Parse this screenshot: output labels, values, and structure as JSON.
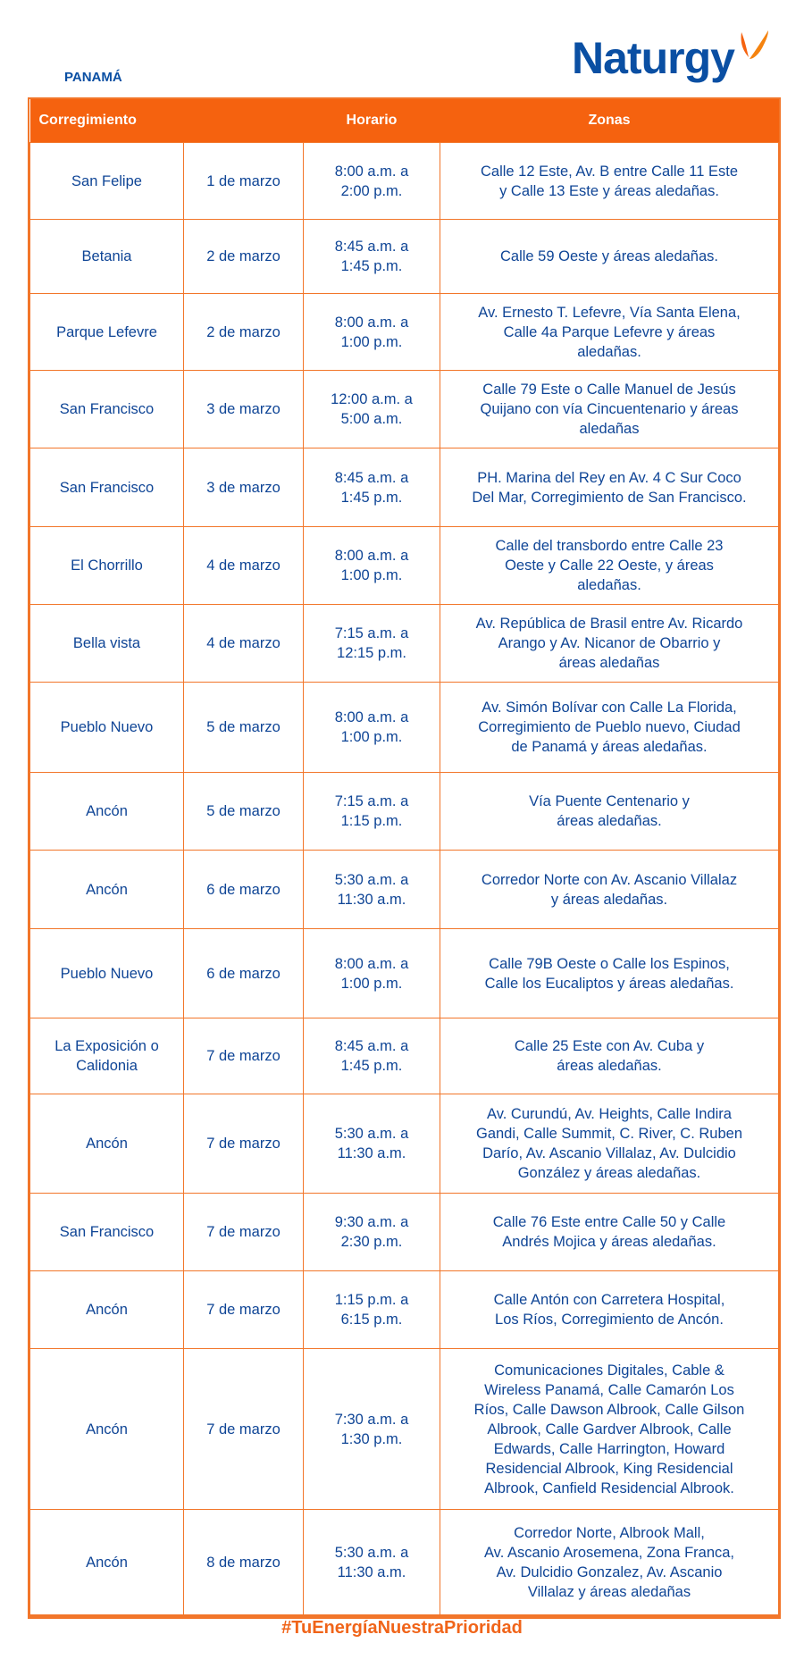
{
  "brand": {
    "logo_text": "Naturgy",
    "accent": "#f5620f",
    "blue": "#0a4fa3"
  },
  "region": "PANAMÁ",
  "table": {
    "headers": [
      "Corregimiento",
      "",
      "Horario",
      "Zonas"
    ],
    "rows": [
      {
        "corregimiento": "San Felipe",
        "fecha": "1 de marzo",
        "horario": "8:00 a.m. a\n2:00 p.m.",
        "zonas": "Calle 12 Este, Av. B entre Calle 11 Este\ny Calle 13 Este y áreas aledañas."
      },
      {
        "corregimiento": "Betania",
        "fecha": "2 de marzo",
        "horario": "8:45 a.m. a\n1:45 p.m.",
        "zonas": "Calle 59 Oeste y áreas aledañas."
      },
      {
        "corregimiento": "Parque Lefevre",
        "fecha": "2 de marzo",
        "horario": "8:00 a.m. a\n1:00 p.m.",
        "zonas": "Av. Ernesto T. Lefevre, Vía Santa Elena,\nCalle 4a Parque Lefevre y áreas\naledañas."
      },
      {
        "corregimiento": "San Francisco",
        "fecha": "3 de marzo",
        "horario": "12:00 a.m. a\n5:00 a.m.",
        "zonas": "Calle 79 Este o Calle Manuel de Jesús\nQuijano con vía Cincuentenario y áreas\naledañas"
      },
      {
        "corregimiento": "San Francisco",
        "fecha": "3 de marzo",
        "horario": "8:45 a.m. a\n1:45 p.m.",
        "zonas": "PH. Marina del Rey en Av. 4 C Sur Coco\nDel Mar, Corregimiento de San Francisco."
      },
      {
        "corregimiento": "El Chorrillo",
        "fecha": "4 de marzo",
        "horario": "8:00 a.m. a\n1:00 p.m.",
        "zonas": "Calle del transbordo entre Calle 23\nOeste y Calle 22 Oeste, y áreas\naledañas."
      },
      {
        "corregimiento": "Bella vista",
        "fecha": "4 de marzo",
        "horario": "7:15 a.m. a\n12:15 p.m.",
        "zonas": "Av. República de Brasil entre Av. Ricardo\nArango y Av. Nicanor de Obarrio y\náreas aledañas"
      },
      {
        "corregimiento": "Pueblo Nuevo",
        "fecha": "5 de marzo",
        "horario": "8:00 a.m. a\n1:00 p.m.",
        "zonas": "Av. Simón Bolívar con Calle La Florida,\nCorregimiento de Pueblo nuevo, Ciudad\nde Panamá y áreas aledañas."
      },
      {
        "corregimiento": "Ancón",
        "fecha": "5 de marzo",
        "horario": "7:15 a.m. a\n1:15 p.m.",
        "zonas": "Vía Puente Centenario y\náreas aledañas."
      },
      {
        "corregimiento": "Ancón",
        "fecha": "6 de marzo",
        "horario": "5:30 a.m. a\n11:30 a.m.",
        "zonas": "Corredor Norte con Av. Ascanio Villalaz\ny áreas aledañas."
      },
      {
        "corregimiento": "Pueblo Nuevo",
        "fecha": "6 de marzo",
        "horario": "8:00 a.m. a\n1:00 p.m.",
        "zonas": "Calle 79B Oeste o Calle los Espinos,\nCalle los Eucaliptos y áreas aledañas."
      },
      {
        "corregimiento": "La Exposición o\nCalidonia",
        "fecha": "7 de marzo",
        "horario": "8:45 a.m. a\n1:45 p.m.",
        "zonas": "Calle 25 Este con Av. Cuba y\náreas aledañas."
      },
      {
        "corregimiento": "Ancón",
        "fecha": "7 de marzo",
        "horario": "5:30 a.m. a\n11:30 a.m.",
        "zonas": "Av. Curundú, Av. Heights, Calle Indira\nGandi, Calle Summit, C. River, C. Ruben\nDarío, Av. Ascanio Villalaz, Av. Dulcidio\nGonzález y áreas aledañas."
      },
      {
        "corregimiento": "San Francisco",
        "fecha": "7 de marzo",
        "horario": "9:30 a.m. a\n2:30 p.m.",
        "zonas": "Calle 76 Este entre Calle 50 y Calle\nAndrés Mojica y áreas aledañas."
      },
      {
        "corregimiento": "Ancón",
        "fecha": "7 de marzo",
        "horario": "1:15 p.m. a\n6:15 p.m.",
        "zonas": "Calle Antón con Carretera Hospital,\nLos Ríos, Corregimiento de Ancón."
      },
      {
        "corregimiento": "Ancón",
        "fecha": "7 de marzo",
        "horario": "7:30 a.m. a\n1:30 p.m.",
        "zonas": "Comunicaciones Digitales, Cable &\nWireless Panamá, Calle Camarón Los\nRíos, Calle Dawson Albrook, Calle Gilson\nAlbrook, Calle Gardver Albrook, Calle\nEdwards, Calle Harrington, Howard\nResidencial Albrook, King Residencial\nAlbrook, Canfield Residencial Albrook."
      },
      {
        "corregimiento": "Ancón",
        "fecha": "8 de marzo",
        "horario": "5:30 a.m. a\n11:30 a.m.",
        "zonas": "Corredor Norte, Albrook Mall,\nAv. Ascanio Arosemena, Zona Franca,\nAv. Dulcidio Gonzalez, Av. Ascanio\nVillalaz y áreas aledañas"
      }
    ]
  },
  "footer": {
    "hashtag": "#TuEnergíaNuestraPrioridad"
  }
}
